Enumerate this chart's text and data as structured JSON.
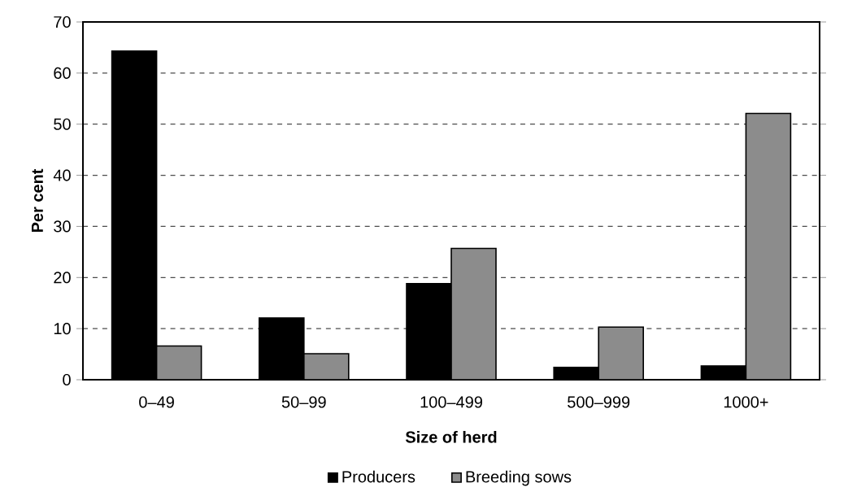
{
  "chart_data": {
    "type": "bar",
    "xlabel": "Size of herd",
    "ylabel": "Per cent",
    "categories": [
      "0–49",
      "50–99",
      "100–499",
      "500–999",
      "1000+"
    ],
    "series": [
      {
        "name": "Producers",
        "color": "#000000",
        "values": [
          64.3,
          12.1,
          18.8,
          2.4,
          2.7
        ]
      },
      {
        "name": "Breeding sows",
        "color": "#8c8c8c",
        "values": [
          6.6,
          5.1,
          25.7,
          10.3,
          52.1
        ]
      }
    ],
    "ylim": [
      0,
      70
    ],
    "yticks": [
      0,
      10,
      20,
      30,
      40,
      50,
      60,
      70
    ],
    "grid": "y",
    "legend": "bottom"
  }
}
